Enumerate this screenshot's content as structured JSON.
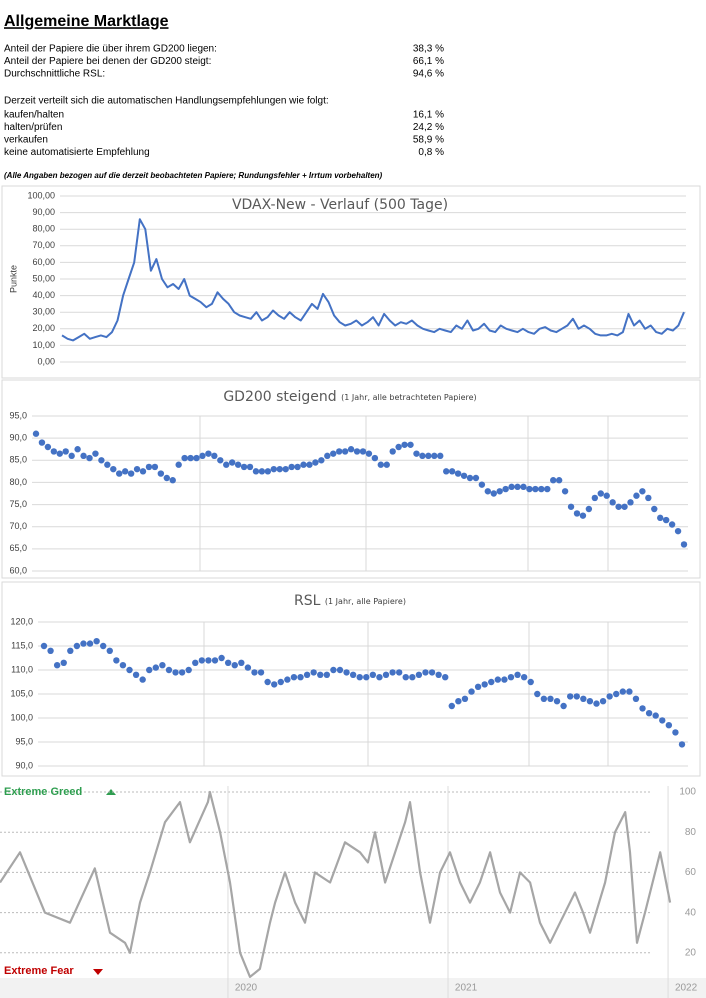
{
  "header": {
    "title": "Allgemeine Marktlage"
  },
  "stats": [
    {
      "label": "Anteil der Papiere die über ihrem GD200 liegen:",
      "value": "38,3 %"
    },
    {
      "label": "Anteil der Papiere bei denen der GD200 steigt:",
      "value": "66,1 %"
    },
    {
      "label": "Durchschnittliche RSL:",
      "value": "94,6 %"
    }
  ],
  "recommendations_intro": "Derzeit verteilt sich die automatischen Handlungsempfehlungen wie folgt:",
  "recommendations": [
    {
      "label": "kaufen/halten",
      "value": "16,1 %"
    },
    {
      "label": "halten/prüfen",
      "value": "24,2 %"
    },
    {
      "label": "verkaufen",
      "value": "58,9 %"
    },
    {
      "label": "keine automatisierte Empfehlung",
      "value": "0,8 %"
    }
  ],
  "footnote": "(Alle Angaben bezogen auf die derzeit beobachteten Papiere; Rundungsfehler + Irrtum vorbehalten)",
  "chart_data": [
    {
      "type": "line",
      "title": "VDAX-New - Verlauf (500 Tage)",
      "y_label": "Punkte",
      "color": "#4472c4",
      "grid": true,
      "ylim": [
        0,
        100
      ],
      "yticks": [
        {
          "value": 0,
          "label": "0,00"
        },
        {
          "value": 10,
          "label": "10,00"
        },
        {
          "value": 20,
          "label": "20,00"
        },
        {
          "value": 30,
          "label": "30,00"
        },
        {
          "value": 40,
          "label": "40,00"
        },
        {
          "value": 50,
          "label": "50,00"
        },
        {
          "value": 60,
          "label": "60,00"
        },
        {
          "value": 70,
          "label": "70,00"
        },
        {
          "value": 80,
          "label": "80,00"
        },
        {
          "value": 90,
          "label": "90,00"
        },
        {
          "value": 100,
          "label": "100,00"
        }
      ],
      "values": [
        16,
        14,
        13,
        15,
        17,
        14,
        15,
        16,
        15,
        18,
        25,
        40,
        50,
        60,
        86,
        80,
        55,
        62,
        50,
        45,
        47,
        44,
        50,
        40,
        38,
        36,
        33,
        35,
        42,
        38,
        35,
        30,
        28,
        27,
        26,
        30,
        25,
        27,
        31,
        28,
        26,
        30,
        27,
        25,
        30,
        35,
        32,
        41,
        36,
        28,
        24,
        22,
        23,
        25,
        22,
        24,
        27,
        22,
        29,
        25,
        22,
        24,
        23,
        25,
        22,
        20,
        19,
        18,
        20,
        19,
        18,
        22,
        20,
        25,
        19,
        20,
        23,
        19,
        18,
        22,
        20,
        19,
        18,
        20,
        18,
        17,
        20,
        21,
        19,
        18,
        20,
        22,
        26,
        20,
        22,
        20,
        17,
        16,
        16,
        17,
        16,
        18,
        29,
        22,
        25,
        20,
        22,
        18,
        17,
        20,
        19,
        22,
        30
      ]
    },
    {
      "type": "dots",
      "title": "GD200 steigend",
      "subtitle": "(1 Jahr, alle betrachteten Papiere)",
      "color": "#4472c4",
      "grid": true,
      "ylim": [
        60,
        95
      ],
      "yticks": [
        {
          "value": 60,
          "label": "60,0"
        },
        {
          "value": 65,
          "label": "65,0"
        },
        {
          "value": 70,
          "label": "70,0"
        },
        {
          "value": 75,
          "label": "75,0"
        },
        {
          "value": 80,
          "label": "80,0"
        },
        {
          "value": 85,
          "label": "85,0"
        },
        {
          "value": 90,
          "label": "90,0"
        },
        {
          "value": 95,
          "label": "95,0"
        }
      ],
      "values": [
        91,
        89,
        88,
        87,
        86.5,
        87,
        86,
        87.5,
        86,
        85.5,
        86.5,
        85,
        84,
        83,
        82,
        82.5,
        82,
        83,
        82.5,
        83.5,
        83.5,
        82,
        81,
        80.5,
        84,
        85.5,
        85.5,
        85.5,
        86,
        86.5,
        86,
        85,
        84,
        84.5,
        84,
        83.5,
        83.5,
        82.5,
        82.5,
        82.5,
        83,
        83,
        83,
        83.5,
        83.5,
        84,
        84,
        84.5,
        85,
        86,
        86.5,
        87,
        87,
        87.5,
        87,
        87,
        86.5,
        85.5,
        84,
        84,
        87,
        88,
        88.5,
        88.5,
        86.5,
        86,
        86,
        86,
        86,
        82.5,
        82.5,
        82,
        81.5,
        81,
        81,
        79.5,
        78,
        77.5,
        78,
        78.5,
        79,
        79,
        79,
        78.5,
        78.5,
        78.5,
        78.5,
        80.5,
        80.5,
        78,
        74.5,
        73,
        72.5,
        74,
        76.5,
        77.5,
        77,
        75.5,
        74.5,
        74.5,
        75.5,
        77,
        78,
        76.5,
        74,
        72,
        71.5,
        70.5,
        69,
        66
      ]
    },
    {
      "type": "dots",
      "title": "RSL",
      "subtitle": "(1 Jahr, alle Papiere)",
      "color": "#4472c4",
      "grid": true,
      "ylim": [
        90,
        120
      ],
      "yticks": [
        {
          "value": 90,
          "label": "90,0"
        },
        {
          "value": 95,
          "label": "95,0"
        },
        {
          "value": 100,
          "label": "100,0"
        },
        {
          "value": 105,
          "label": "105,0"
        },
        {
          "value": 110,
          "label": "110,0"
        },
        {
          "value": 115,
          "label": "115,0"
        },
        {
          "value": 120,
          "label": "120,0"
        }
      ],
      "values": [
        115,
        114,
        111,
        111.5,
        114,
        115,
        115.5,
        115.5,
        116,
        115,
        114,
        112,
        111,
        110,
        109,
        108,
        110,
        110.5,
        111,
        110,
        109.5,
        109.5,
        110,
        111.5,
        112,
        112,
        112,
        112.5,
        111.5,
        111,
        111.5,
        110.5,
        109.5,
        109.5,
        107.5,
        107,
        107.5,
        108,
        108.5,
        108.5,
        109,
        109.5,
        109,
        109,
        110,
        110,
        109.5,
        109,
        108.5,
        108.5,
        109,
        108.5,
        109,
        109.5,
        109.5,
        108.5,
        108.5,
        109,
        109.5,
        109.5,
        109,
        108.5,
        102.5,
        103.5,
        104,
        105.5,
        106.5,
        107,
        107.5,
        108,
        108,
        108.5,
        109,
        108.5,
        107.5,
        105,
        104,
        104,
        103.5,
        102.5,
        104.5,
        104.5,
        104,
        103.5,
        103,
        103.5,
        104.5,
        105,
        105.5,
        105.5,
        104,
        102,
        101,
        100.5,
        99.5,
        98.5,
        97,
        94.5
      ]
    },
    {
      "type": "line",
      "color": "#a6a6a6",
      "grid": true,
      "y_axis_position": "right",
      "annotations": [
        "Extreme Greed",
        "Extreme Fear"
      ],
      "xlim": [
        2018.964,
        2022.136
      ],
      "xticks": [
        2020,
        2021,
        2022
      ],
      "ylim": [
        0,
        103
      ],
      "yticks": [
        20,
        40,
        60,
        80,
        100
      ],
      "x": [
        2018.964,
        2019.055,
        2019.168,
        2019.282,
        2019.395,
        2019.464,
        2019.532,
        2019.555,
        2019.6,
        2019.645,
        2019.714,
        2019.782,
        2019.827,
        2019.909,
        2019.918,
        2019.964,
        2020.009,
        2020.055,
        2020.1,
        2020.145,
        2020.191,
        2020.214,
        2020.259,
        2020.305,
        2020.35,
        2020.395,
        2020.464,
        2020.532,
        2020.6,
        2020.636,
        2020.668,
        2020.714,
        2020.805,
        2020.827,
        2020.873,
        2020.918,
        2020.964,
        2021.009,
        2021.055,
        2021.1,
        2021.145,
        2021.191,
        2021.236,
        2021.282,
        2021.327,
        2021.373,
        2021.418,
        2021.464,
        2021.509,
        2021.577,
        2021.614,
        2021.645,
        2021.714,
        2021.759,
        2021.805,
        2021.827,
        2021.859,
        2021.895,
        2021.964,
        2022.009
      ],
      "values": [
        55,
        70,
        40,
        35,
        62,
        30,
        25,
        20,
        45,
        60,
        85,
        95,
        75,
        95,
        100,
        80,
        55,
        20,
        8,
        12,
        35,
        45,
        60,
        45,
        35,
        60,
        55,
        75,
        70,
        65,
        80,
        55,
        85,
        95,
        60,
        35,
        60,
        70,
        55,
        45,
        55,
        70,
        50,
        40,
        60,
        55,
        35,
        25,
        35,
        50,
        40,
        30,
        55,
        80,
        90,
        70,
        25,
        40,
        70,
        45
      ]
    }
  ]
}
